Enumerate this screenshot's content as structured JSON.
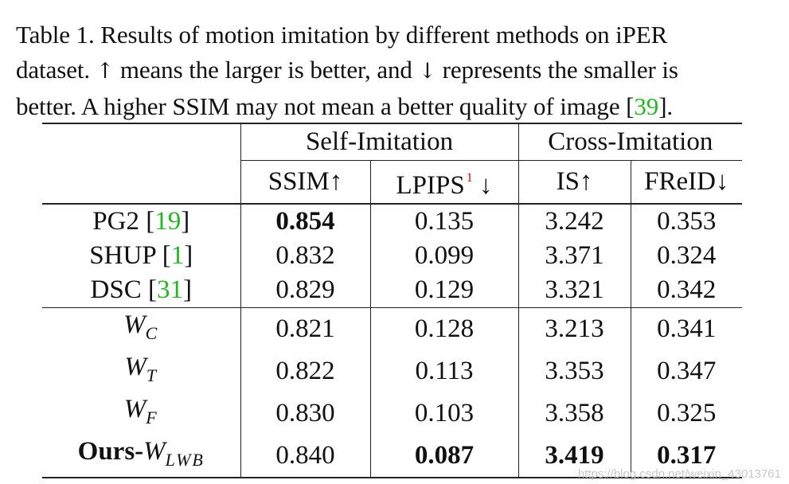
{
  "caption": {
    "line1": "Table 1. Results of motion imitation by different methods on iPER",
    "line2_a": "dataset. ",
    "up_arrow": "↑",
    "line2_b": " means the larger is better, and ",
    "down_arrow": "↓",
    "line2_c": " represents the smaller is",
    "line3_a": "better.  A higher SSIM may not mean a better quality of image [",
    "line3_cite": "39",
    "line3_b": "]."
  },
  "table": {
    "group_headers": [
      "Self-Imitation",
      "Cross-Imitation"
    ],
    "columns": {
      "ssim": "SSIM↑",
      "lpips": "LPIPS",
      "lpips_footnote": "1",
      "lpips_arrow": " ↓",
      "is": "IS↑",
      "freid": "FReID↓"
    },
    "baselines": [
      {
        "name": "PG2 [",
        "cite": "19",
        "close": "]",
        "ssim": "0.854",
        "lpips": "0.135",
        "is": "3.242",
        "freid": "0.353"
      },
      {
        "name": "SHUP [",
        "cite": "1",
        "close": "]",
        "ssim": "0.832",
        "lpips": "0.099",
        "is": "3.371",
        "freid": "0.324"
      },
      {
        "name": "DSC [",
        "cite": "31",
        "close": "]",
        "ssim": "0.829",
        "lpips": "0.129",
        "is": "3.321",
        "freid": "0.342"
      }
    ],
    "variants": [
      {
        "base": "W",
        "sub": "C",
        "ssim": "0.821",
        "lpips": "0.128",
        "is": "3.213",
        "freid": "0.341"
      },
      {
        "base": "W",
        "sub": "T",
        "ssim": "0.822",
        "lpips": "0.113",
        "is": "3.353",
        "freid": "0.347"
      },
      {
        "base": "W",
        "sub": "F",
        "ssim": "0.830",
        "lpips": "0.103",
        "is": "3.358",
        "freid": "0.325"
      }
    ],
    "ours": {
      "prefix": "Ours-",
      "base": "W",
      "sub": "LWB",
      "ssim": "0.840",
      "lpips": "0.087",
      "is": "3.419",
      "freid": "0.317"
    }
  },
  "watermark": "https://blog.csdn.net/weixin_43013761"
}
